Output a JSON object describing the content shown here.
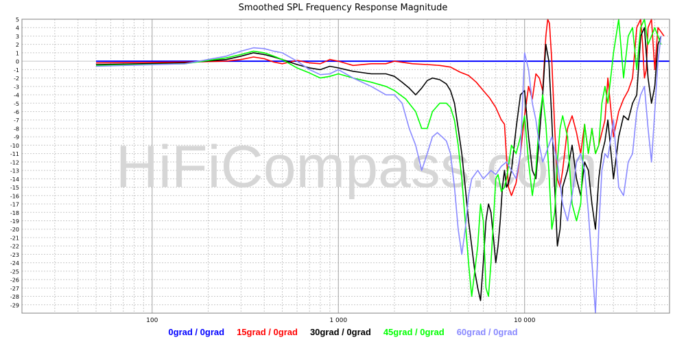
{
  "chart_data": {
    "type": "line",
    "title": "Smoothed SPL Frequency Response Magnitude",
    "watermark": "HiFiCompass.com",
    "xscale": "log",
    "xlim": [
      20,
      60000
    ],
    "ylim": [
      -30,
      5
    ],
    "x_tick_labels": [
      {
        "value": 100,
        "label": "100"
      },
      {
        "value": 1000,
        "label": "1 000"
      },
      {
        "value": 10000,
        "label": "10 000"
      }
    ],
    "y_ticks": [
      5,
      4,
      3,
      2,
      1,
      0,
      -1,
      -2,
      -3,
      -4,
      -5,
      -6,
      -7,
      -8,
      -9,
      -10,
      -11,
      -12,
      -13,
      -14,
      -15,
      -16,
      -17,
      -18,
      -19,
      -20,
      -21,
      -22,
      -23,
      -24,
      -25,
      -26,
      -27,
      -28,
      -29
    ],
    "grid": true,
    "legend": "bottom",
    "series": [
      {
        "name": "0grad / 0grad",
        "color": "#0000ff",
        "x": [
          50,
          60000
        ],
        "y": [
          0,
          0
        ]
      },
      {
        "name": "15grad / 0grad",
        "color": "#ff0000",
        "x": [
          50,
          150,
          250,
          300,
          350,
          400,
          450,
          500,
          600,
          700,
          800,
          900,
          1000,
          1200,
          1500,
          1800,
          2000,
          2500,
          3000,
          3500,
          4000,
          4500,
          5000,
          5500,
          6000,
          6500,
          7000,
          7500,
          7800,
          8000,
          8200,
          8500,
          9000,
          9500,
          10000,
          10500,
          11000,
          11500,
          12000,
          12500,
          13000,
          13300,
          13600,
          14000,
          14500,
          15000,
          15500,
          16000,
          17000,
          18000,
          19000,
          20000,
          21000,
          22000,
          23000,
          24000,
          25000,
          27000,
          28000,
          30000,
          32000,
          34000,
          36000,
          38000,
          40000,
          42000,
          43000,
          44000,
          45000,
          46000,
          48000,
          50000,
          52000,
          54000,
          56000
        ],
        "y": [
          -0.2,
          -0.1,
          0,
          0.2,
          0.5,
          0.3,
          -0.1,
          -0.3,
          0.1,
          -0.2,
          -0.3,
          0.2,
          0,
          -0.5,
          -0.3,
          -0.3,
          0,
          -0.3,
          -0.4,
          -0.5,
          -0.7,
          -1.3,
          -1.7,
          -2.5,
          -3.5,
          -4.4,
          -5.5,
          -7,
          -7.5,
          -11.5,
          -15,
          -16,
          -14.5,
          -11,
          -6.5,
          -3,
          -4.5,
          -1.5,
          -2,
          -3.5,
          3,
          5.5,
          4.5,
          0,
          -8,
          -14,
          -15,
          -13,
          -8,
          -6.5,
          -8.5,
          -11,
          -7.5,
          -11,
          -8,
          -11,
          -10,
          -7,
          -2,
          -9,
          -6,
          -4.5,
          -3.5,
          -2,
          4,
          5,
          2,
          -2,
          -1,
          4,
          5.5,
          -1,
          4,
          3.5,
          3
        ]
      },
      {
        "name": "30grad / 0grad",
        "color": "#000000",
        "x": [
          50,
          150,
          250,
          300,
          350,
          400,
          450,
          500,
          600,
          700,
          800,
          900,
          1000,
          1200,
          1500,
          1800,
          2000,
          2200,
          2400,
          2600,
          2800,
          3000,
          3200,
          3500,
          3800,
          4000,
          4200,
          4400,
          4600,
          4800,
          5000,
          5200,
          5400,
          5600,
          5800,
          6000,
          6200,
          6400,
          6600,
          6800,
          7000,
          7200,
          7400,
          7600,
          7800,
          8000,
          8200,
          8500,
          9000,
          9500,
          10000,
          10500,
          11000,
          11500,
          12000,
          12500,
          13000,
          13500,
          14000,
          14500,
          15000,
          15500,
          16000,
          17000,
          18000,
          19000,
          20000,
          21000,
          22000,
          23000,
          24000,
          25000,
          26000,
          27000,
          28000,
          30000,
          32000,
          34000,
          36000,
          38000,
          40000,
          42000,
          44000,
          46000,
          48000,
          50000,
          52000,
          54000
        ],
        "y": [
          -0.4,
          -0.2,
          0.2,
          0.6,
          1,
          0.8,
          0.5,
          0.2,
          -0.4,
          -0.8,
          -1,
          -0.6,
          -0.8,
          -1.2,
          -1.5,
          -1.5,
          -1.8,
          -2.5,
          -3.2,
          -4,
          -3.2,
          -2.3,
          -2,
          -2.2,
          -2.7,
          -3.5,
          -5,
          -8,
          -11,
          -15,
          -19,
          -22,
          -25,
          -27,
          -28.5,
          -24,
          -19,
          -17,
          -18,
          -21,
          -24,
          -22,
          -19,
          -15,
          -13,
          -15,
          -14.5,
          -13,
          -8,
          -4,
          -3.5,
          -9,
          -13,
          -14,
          -9,
          -4,
          2,
          0,
          -7,
          -15,
          -22,
          -20,
          -15,
          -13,
          -10,
          -14,
          -16,
          -12,
          -13,
          -17,
          -20,
          -14,
          -11,
          -9.5,
          -7,
          -14,
          -9,
          -6.5,
          -7,
          -5,
          -4,
          3,
          4,
          -2,
          -5,
          -3,
          2,
          3
        ]
      },
      {
        "name": "45grad / 0grad",
        "color": "#00ff00",
        "x": [
          50,
          150,
          250,
          300,
          350,
          400,
          450,
          500,
          600,
          700,
          800,
          900,
          1000,
          1200,
          1500,
          1800,
          2000,
          2300,
          2600,
          2800,
          3000,
          3200,
          3500,
          3800,
          4000,
          4200,
          4400,
          4600,
          4800,
          5000,
          5200,
          5400,
          5600,
          5800,
          6000,
          6200,
          6400,
          6600,
          6800,
          7000,
          7200,
          7500,
          7800,
          8000,
          8500,
          9000,
          9500,
          10000,
          10500,
          11000,
          11500,
          12000,
          12500,
          13000,
          13500,
          14000,
          14500,
          15000,
          15500,
          16000,
          17000,
          18000,
          19000,
          20000,
          21000,
          22000,
          23000,
          24000,
          25000,
          26000,
          27000,
          28000,
          30000,
          32000,
          34000,
          36000,
          38000,
          40000,
          42000,
          44000,
          46000,
          48000,
          50000,
          52000,
          54000
        ],
        "y": [
          -0.5,
          -0.3,
          0.4,
          0.8,
          1.2,
          1,
          0.6,
          0.2,
          -0.8,
          -1.4,
          -2,
          -1.8,
          -1.5,
          -2,
          -2.5,
          -3,
          -3.5,
          -4.5,
          -6,
          -8,
          -8,
          -6,
          -5,
          -5,
          -5.5,
          -7,
          -10,
          -14,
          -19,
          -24,
          -28,
          -25,
          -22,
          -17,
          -19,
          -27,
          -28,
          -24,
          -19,
          -14,
          -13.5,
          -15.5,
          -15,
          -14,
          -10,
          -11,
          -9,
          -6.5,
          -12,
          -16,
          -13,
          -7,
          -4,
          -7.5,
          -13,
          -20,
          -18,
          -12,
          -8,
          -6.5,
          -9,
          -17,
          -19,
          -17,
          -7.5,
          -11,
          -8,
          -11,
          -10,
          -5,
          -3,
          -5,
          1,
          5,
          -2,
          3,
          4,
          -1,
          4,
          5,
          2,
          3,
          4,
          3,
          2
        ]
      },
      {
        "name": "60grad / 0grad",
        "color": "#8888ff",
        "x": [
          50,
          150,
          250,
          300,
          350,
          400,
          450,
          500,
          600,
          700,
          800,
          900,
          1000,
          1200,
          1500,
          1800,
          2000,
          2200,
          2400,
          2600,
          2800,
          3000,
          3200,
          3400,
          3600,
          3800,
          4000,
          4200,
          4400,
          4600,
          4800,
          5000,
          5200,
          5400,
          5600,
          5800,
          6000,
          6300,
          6600,
          7000,
          7500,
          8000,
          8500,
          9000,
          9500,
          10000,
          10500,
          11000,
          11500,
          12000,
          12500,
          13000,
          14000,
          15000,
          16000,
          17000,
          18000,
          19000,
          20000,
          21000,
          22000,
          23000,
          24000,
          25000,
          26000,
          27000,
          28000,
          30000,
          32000,
          34000,
          36000,
          38000,
          40000,
          42000,
          44000,
          46000,
          48000,
          50000,
          52000,
          54000
        ],
        "y": [
          -0.6,
          -0.3,
          0.6,
          1.2,
          1.6,
          1.5,
          1.2,
          1,
          0,
          -1,
          -1.6,
          -1.5,
          -1,
          -2,
          -3,
          -4,
          -4,
          -5,
          -8,
          -10,
          -13,
          -11,
          -9,
          -8.5,
          -9,
          -9.5,
          -11,
          -15,
          -20,
          -23,
          -20,
          -16,
          -14,
          -13.5,
          -13,
          -13.5,
          -14,
          -13.5,
          -13,
          -13.5,
          -12.5,
          -12,
          -13,
          -14,
          -11,
          1,
          -1,
          -5,
          -7,
          -10,
          -12,
          -11,
          -9,
          -12,
          -17,
          -19,
          -16,
          -12,
          -11,
          -13,
          -18,
          -24,
          -30,
          -20,
          -13,
          -11,
          -11.5,
          -7,
          -15,
          -16,
          -12,
          -11,
          -6,
          -4,
          -3,
          -8,
          -12,
          -6,
          0,
          3
        ]
      }
    ]
  }
}
